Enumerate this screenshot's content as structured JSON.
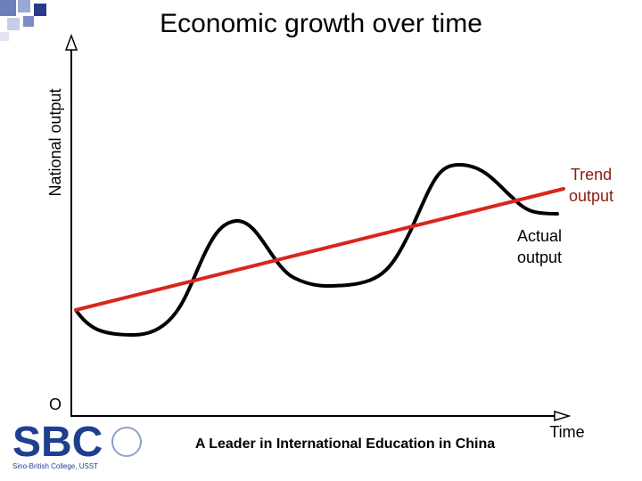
{
  "title": "Economic growth over time",
  "y_axis_label": "National output",
  "x_axis_label": "Time",
  "origin_label": "O",
  "trend_label": [
    "Trend",
    "output"
  ],
  "actual_label": [
    "Actual",
    "output"
  ],
  "footer": "A Leader in International Education in China",
  "logo": {
    "name": "SBC",
    "subtitle": "Sino-British College, USST"
  }
}
